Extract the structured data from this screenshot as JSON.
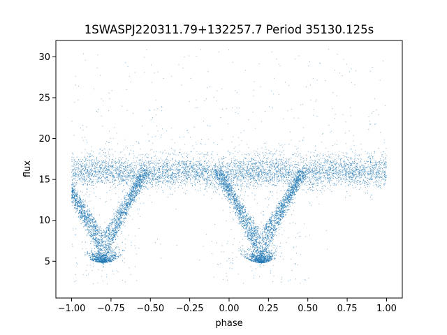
{
  "chart_data": {
    "type": "scatter",
    "title": "1SWASPJ220311.79+132257.7 Period 35130.125s",
    "xlabel": "phase",
    "ylabel": "flux",
    "xlim": [
      -1.1,
      1.1
    ],
    "ylim": [
      0.5,
      32
    ],
    "grid": false,
    "legend": "none",
    "point_color": "#1f77b4",
    "x_ticks": [
      -1.0,
      -0.75,
      -0.5,
      -0.25,
      0.0,
      0.25,
      0.5,
      0.75,
      1.0
    ],
    "x_tick_labels": [
      "−1.00",
      "−0.75",
      "−0.50",
      "−0.25",
      "0.00",
      "0.25",
      "0.50",
      "0.75",
      "1.00"
    ],
    "y_ticks": [
      5,
      10,
      15,
      20,
      25,
      30
    ],
    "y_tick_labels": [
      "5",
      "10",
      "15",
      "20",
      "25",
      "30"
    ],
    "x_range": [
      -1.0,
      1.0
    ],
    "baseline_flux": 16,
    "eclipse_centers": [
      -0.8,
      0.2
    ],
    "eclipse_min_flux": 4.8,
    "v_branch_min_flux": [
      8.0,
      7.0,
      6.0,
      5.0
    ],
    "flux_cap": 31
  }
}
